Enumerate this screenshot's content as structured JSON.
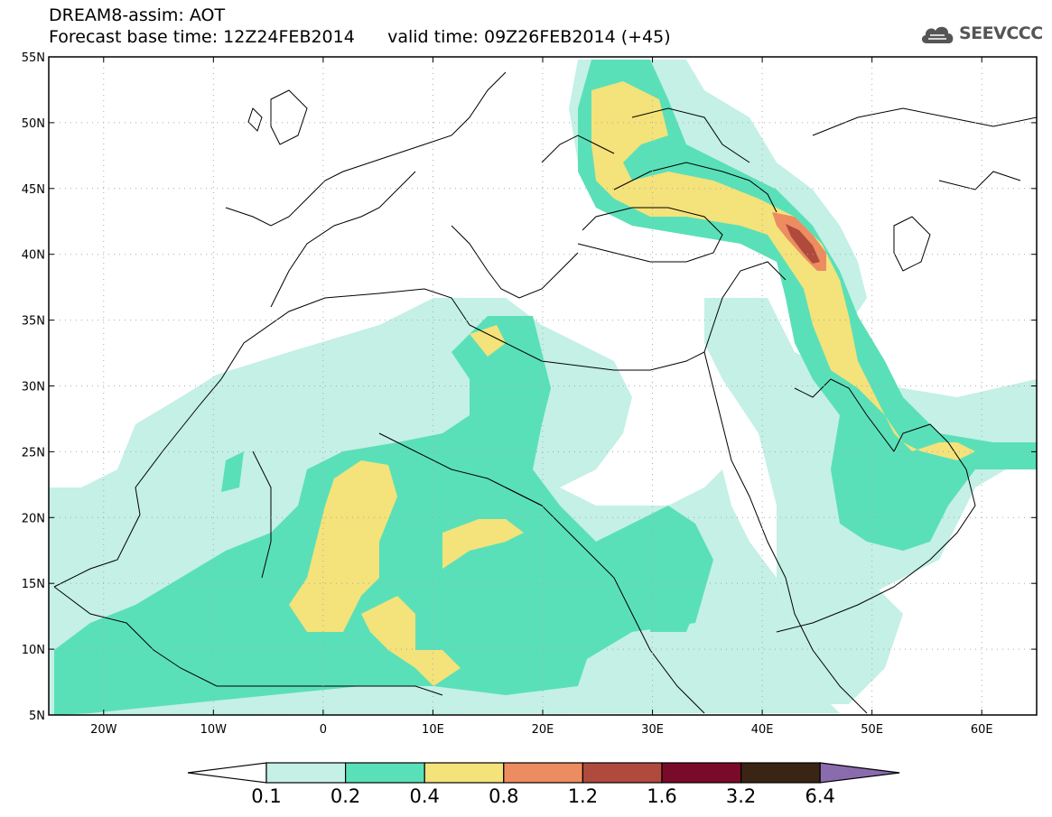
{
  "header": {
    "title": "DREAM8-assim: AOT",
    "base_time_label": "Forecast base time: 12Z24FEB2014",
    "valid_time_label": "valid time: 09Z26FEB2014 (+45)"
  },
  "logo": {
    "text": "SEEVCCC",
    "icon": "cloud-icon"
  },
  "map": {
    "lon_range": [
      -25,
      65
    ],
    "lat_range": [
      5,
      55
    ],
    "lat_labels": [
      "55N",
      "50N",
      "45N",
      "40N",
      "35N",
      "30N",
      "25N",
      "20N",
      "15N",
      "10N",
      "5N"
    ],
    "lon_labels": [
      "20W",
      "10W",
      "0",
      "10E",
      "20E",
      "30E",
      "40E",
      "50E",
      "60E"
    ],
    "lat_values": [
      55,
      50,
      45,
      40,
      35,
      30,
      25,
      20,
      15,
      10,
      5
    ],
    "lon_values": [
      -20,
      -10,
      0,
      10,
      20,
      30,
      40,
      50,
      60
    ]
  },
  "colorbar": {
    "levels": [
      "0.1",
      "0.2",
      "0.4",
      "0.8",
      "1.2",
      "1.6",
      "3.2",
      "6.4"
    ],
    "colors": [
      "#c4f0e6",
      "#5ae0b8",
      "#f4e27a",
      "#ec8c60",
      "#b04a3c",
      "#7a0a2a",
      "#3a2414",
      "#8a6cae"
    ]
  }
}
